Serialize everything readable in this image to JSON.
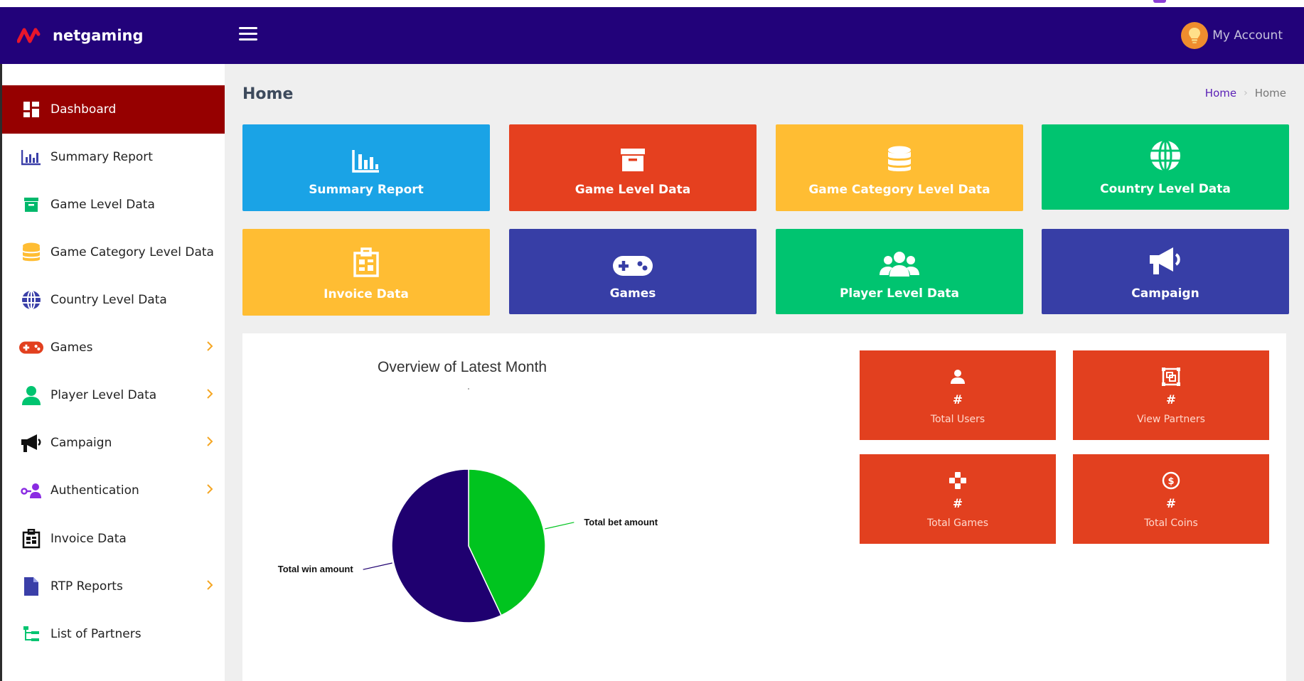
{
  "app": {
    "brand": "netgaming"
  },
  "header": {
    "account_label": "My Account"
  },
  "sidebar": {
    "items": [
      {
        "label": "Dashboard",
        "active": true,
        "icon": "dashboard-icon"
      },
      {
        "label": "Summary Report",
        "icon": "bar-chart-icon"
      },
      {
        "label": "Game Level Data",
        "icon": "archive-icon"
      },
      {
        "label": "Game Category Level Data",
        "icon": "database-icon"
      },
      {
        "label": "Country Level Data",
        "icon": "globe-icon"
      },
      {
        "label": "Games",
        "icon": "gamepad-icon",
        "expandable": true
      },
      {
        "label": "Player Level Data",
        "icon": "user-icon",
        "expandable": true
      },
      {
        "label": "Campaign",
        "icon": "megaphone-icon",
        "expandable": true
      },
      {
        "label": "Authentication",
        "icon": "key-user-icon",
        "expandable": true
      },
      {
        "label": "Invoice Data",
        "icon": "invoice-icon"
      },
      {
        "label": "RTP Reports",
        "icon": "document-icon",
        "expandable": true
      },
      {
        "label": "List of Partners",
        "icon": "sitemap-icon"
      }
    ]
  },
  "page": {
    "title": "Home",
    "breadcrumb": {
      "link": "Home",
      "current": "Home"
    }
  },
  "tiles": [
    {
      "label": "Summary Report",
      "color": "#1aa3e6",
      "icon": "bar-chart-icon"
    },
    {
      "label": "Game Level Data",
      "color": "#e5401f",
      "icon": "archive-icon"
    },
    {
      "label": "Game Category Level Data",
      "color": "#ffbd33",
      "icon": "database-icon"
    },
    {
      "label": "Country Level Data",
      "color": "#00c470",
      "icon": "globe-icon"
    },
    {
      "label": "Invoice Data",
      "color": "#ffbd33",
      "icon": "invoice-icon"
    },
    {
      "label": "Games",
      "color": "#373ea6",
      "icon": "gamepad-icon"
    },
    {
      "label": "Player Level Data",
      "color": "#00c470",
      "icon": "users-icon"
    },
    {
      "label": "Campaign",
      "color": "#373ea6",
      "icon": "megaphone-icon"
    }
  ],
  "stats": [
    {
      "value": "#",
      "label": "Total Users",
      "icon": "user-icon"
    },
    {
      "value": "#",
      "label": "View Partners",
      "icon": "partners-icon"
    },
    {
      "value": "#",
      "label": "Total Games",
      "icon": "dpad-icon"
    },
    {
      "value": "#",
      "label": "Total Coins",
      "icon": "dollar-coin-icon"
    }
  ],
  "chart_data": {
    "type": "pie",
    "title": "Overview of Latest Month",
    "categories": [
      "Total bet amount",
      "Total win amount"
    ],
    "values": [
      43,
      57
    ],
    "colors": [
      "#00c41f",
      "#1f0070"
    ]
  }
}
